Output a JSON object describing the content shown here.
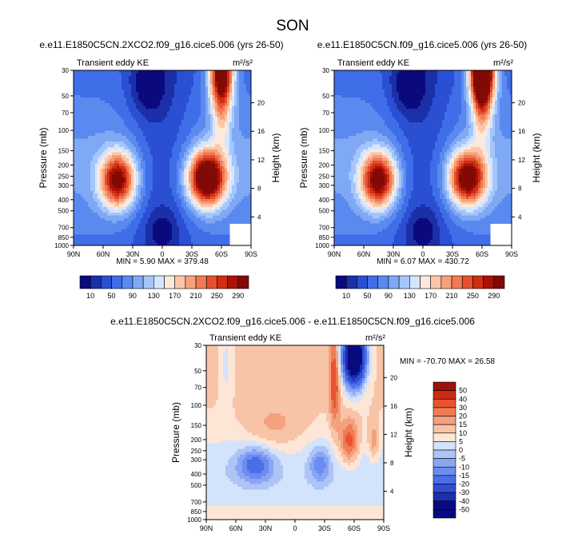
{
  "figure": {
    "title": "SON"
  },
  "colors": {
    "kecolors": [
      "#0a0a7e",
      "#1a2fa8",
      "#2a4fd2",
      "#3f6ee8",
      "#5a8af0",
      "#7fa8f5",
      "#a6c6fa",
      "#d4e6fd",
      "#fde9dc",
      "#fbc6aa",
      "#f6a07c",
      "#f07a53",
      "#e6502e",
      "#cf2e15",
      "#aa1108",
      "#820a04"
    ],
    "difcolors": [
      "#0a0a80",
      "#1d2fb0",
      "#2f4ed3",
      "#4a6ee8",
      "#6b8cf0",
      "#8aa6f3",
      "#aec4f7",
      "#d3e3fb",
      "#fde6d6",
      "#f8c4a7",
      "#f4a27e",
      "#ef7c54",
      "#e9542f",
      "#cc2a12",
      "#a0100a"
    ]
  },
  "chart_data": [
    {
      "type": "heatmap",
      "title": "e.e11.E1850C5CN.2XCO2.f09_g16.cice5.006 (yrs 26-50)",
      "subtitle": "Transient eddy KE",
      "units": "m²/s²",
      "xlabel": "",
      "ylabel": "Pressure (mb)",
      "ylabel_right": "Height (km)",
      "x_ticks": [
        "90N",
        "60N",
        "30N",
        "0",
        "30S",
        "60S",
        "90S"
      ],
      "y_ticks": [
        "30",
        "50",
        "70",
        "100",
        "150",
        "200",
        "250",
        "300",
        "400",
        "500",
        "700",
        "850",
        "1000"
      ],
      "y_right_ticks": [
        "20",
        "16",
        "12",
        "8",
        "4"
      ],
      "min_label": "MIN =",
      "min_value": "5.90",
      "max_label": "MAX =",
      "max_value": "379.48",
      "colorbar_ticks": [
        "10",
        "50",
        "90",
        "130",
        "170",
        "210",
        "250",
        "290"
      ],
      "colorbar_levels": [
        10,
        30,
        50,
        70,
        90,
        110,
        130,
        150,
        170,
        190,
        210,
        230,
        250,
        270,
        290
      ],
      "features": [
        {
          "lat": 45,
          "p": 270,
          "v": 320
        },
        {
          "lat": -45,
          "p": 260,
          "v": 379
        },
        {
          "lat": -60,
          "p": 30,
          "v": 320
        },
        {
          "lat": 15,
          "p": 45,
          "v": 6
        }
      ]
    },
    {
      "type": "heatmap",
      "title": "e.e11.E1850C5CN.f09_g16.cice5.006 (yrs 26-50)",
      "subtitle": "Transient eddy KE",
      "units": "m²/s²",
      "xlabel": "",
      "ylabel": "Pressure (mb)",
      "ylabel_right": "Height (km)",
      "x_ticks": [
        "90N",
        "60N",
        "30N",
        "0",
        "30S",
        "60S",
        "90S"
      ],
      "y_ticks": [
        "30",
        "50",
        "70",
        "100",
        "150",
        "200",
        "250",
        "300",
        "400",
        "500",
        "700",
        "850",
        "1000"
      ],
      "y_right_ticks": [
        "20",
        "16",
        "12",
        "8",
        "4"
      ],
      "min_label": "MIN =",
      "min_value": "6.07",
      "max_label": "MAX =",
      "max_value": "430.72",
      "colorbar_ticks": [
        "10",
        "50",
        "90",
        "130",
        "170",
        "210",
        "250",
        "290"
      ],
      "colorbar_levels": [
        10,
        30,
        50,
        70,
        90,
        110,
        130,
        150,
        170,
        190,
        210,
        230,
        250,
        270,
        290
      ],
      "features": [
        {
          "lat": 45,
          "p": 270,
          "v": 330
        },
        {
          "lat": -45,
          "p": 260,
          "v": 340
        },
        {
          "lat": -60,
          "p": 30,
          "v": 430
        },
        {
          "lat": 15,
          "p": 45,
          "v": 7
        }
      ]
    },
    {
      "type": "heatmap",
      "title": "e.e11.E1850C5CN.2XCO2.f09_g16.cice5.006 - e.e11.E1850C5CN.f09_g16.cice5.006",
      "subtitle": "Transient eddy KE",
      "units": "m²/s²",
      "xlabel": "",
      "ylabel": "Pressure (mb)",
      "ylabel_right": "Height (km)",
      "x_ticks": [
        "90N",
        "60N",
        "30N",
        "0",
        "30S",
        "60S",
        "90S"
      ],
      "y_ticks": [
        "30",
        "50",
        "70",
        "100",
        "150",
        "200",
        "250",
        "300",
        "400",
        "500",
        "700",
        "850",
        "1000"
      ],
      "y_right_ticks": [
        "20",
        "16",
        "12",
        "8",
        "4"
      ],
      "min_label": "MIN =",
      "min_value": "-70.70",
      "max_label": "MAX =",
      "max_value": "26.58",
      "colorbar_ticks": [
        "50",
        "40",
        "30",
        "20",
        "15",
        "10",
        "5",
        "0",
        "-5",
        "-10",
        "-15",
        "-20",
        "-30",
        "-40",
        "-50"
      ],
      "colorbar_levels": [
        -50,
        -40,
        -30,
        -20,
        -15,
        -10,
        -5,
        0,
        5,
        10,
        15,
        20,
        30,
        40,
        50
      ],
      "features": [
        {
          "lat": -60,
          "p": 40,
          "v": -70
        },
        {
          "lat": -40,
          "p": 60,
          "v": 25
        },
        {
          "lat": -55,
          "p": 200,
          "v": 25
        },
        {
          "lat": 40,
          "p": 330,
          "v": -20
        },
        {
          "lat": -25,
          "p": 330,
          "v": -15
        }
      ]
    }
  ]
}
